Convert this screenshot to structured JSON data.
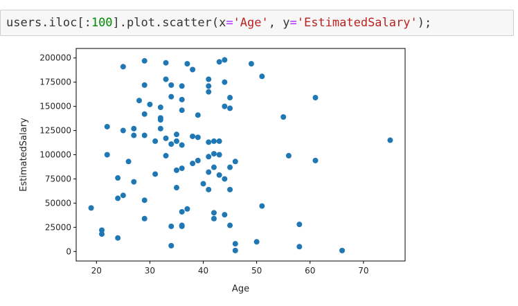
{
  "code": {
    "tokens": [
      {
        "text": "users.iloc[:",
        "cls": ""
      },
      {
        "text": "100",
        "cls": "tok-num"
      },
      {
        "text": "].plot.scatter(x",
        "cls": ""
      },
      {
        "text": "=",
        "cls": "tok-op"
      },
      {
        "text": "'Age'",
        "cls": "tok-str"
      },
      {
        "text": ", y",
        "cls": ""
      },
      {
        "text": "=",
        "cls": "tok-op"
      },
      {
        "text": "'EstimatedSalary'",
        "cls": "tok-str"
      },
      {
        "text": ");",
        "cls": ""
      }
    ]
  },
  "chart_data": {
    "type": "scatter",
    "title": "",
    "xlabel": "Age",
    "ylabel": "EstimatedSalary",
    "xlim": [
      16.2,
      77.8
    ],
    "ylim": [
      -9830,
      209830
    ],
    "x_ticks": [
      20,
      30,
      40,
      50,
      60,
      70
    ],
    "y_ticks": [
      0,
      25000,
      50000,
      75000,
      100000,
      125000,
      150000,
      175000,
      200000
    ],
    "grid": false,
    "marker_color": "#1f77b4",
    "points": [
      {
        "x": 19,
        "y": 45000
      },
      {
        "x": 21,
        "y": 22000
      },
      {
        "x": 21,
        "y": 18000
      },
      {
        "x": 22,
        "y": 129000
      },
      {
        "x": 22,
        "y": 100000
      },
      {
        "x": 24,
        "y": 76000
      },
      {
        "x": 24,
        "y": 55000
      },
      {
        "x": 24,
        "y": 14000
      },
      {
        "x": 25,
        "y": 191000
      },
      {
        "x": 25,
        "y": 125000
      },
      {
        "x": 25,
        "y": 58000
      },
      {
        "x": 26,
        "y": 93000
      },
      {
        "x": 27,
        "y": 127000
      },
      {
        "x": 27,
        "y": 120000
      },
      {
        "x": 27,
        "y": 72000
      },
      {
        "x": 28,
        "y": 156000
      },
      {
        "x": 29,
        "y": 197000
      },
      {
        "x": 29,
        "y": 172000
      },
      {
        "x": 29,
        "y": 142000
      },
      {
        "x": 29,
        "y": 120000
      },
      {
        "x": 29,
        "y": 53000
      },
      {
        "x": 29,
        "y": 34000
      },
      {
        "x": 30,
        "y": 152000
      },
      {
        "x": 31,
        "y": 114000
      },
      {
        "x": 31,
        "y": 80000
      },
      {
        "x": 32,
        "y": 149000
      },
      {
        "x": 32,
        "y": 138000
      },
      {
        "x": 32,
        "y": 136000
      },
      {
        "x": 32,
        "y": 127000
      },
      {
        "x": 33,
        "y": 195000
      },
      {
        "x": 33,
        "y": 178000
      },
      {
        "x": 33,
        "y": 117000
      },
      {
        "x": 33,
        "y": 99000
      },
      {
        "x": 34,
        "y": 172000
      },
      {
        "x": 34,
        "y": 160000
      },
      {
        "x": 34,
        "y": 111000
      },
      {
        "x": 34,
        "y": 26000
      },
      {
        "x": 34,
        "y": 6000
      },
      {
        "x": 35,
        "y": 121000
      },
      {
        "x": 35,
        "y": 114000
      },
      {
        "x": 35,
        "y": 84000
      },
      {
        "x": 35,
        "y": 66000
      },
      {
        "x": 36,
        "y": 171000
      },
      {
        "x": 36,
        "y": 157000
      },
      {
        "x": 36,
        "y": 146000
      },
      {
        "x": 36,
        "y": 110000
      },
      {
        "x": 36,
        "y": 86000
      },
      {
        "x": 36,
        "y": 41000
      },
      {
        "x": 36,
        "y": 27000
      },
      {
        "x": 36,
        "y": 26000
      },
      {
        "x": 37,
        "y": 194000
      },
      {
        "x": 37,
        "y": 44000
      },
      {
        "x": 38,
        "y": 188000
      },
      {
        "x": 38,
        "y": 119000
      },
      {
        "x": 38,
        "y": 91000
      },
      {
        "x": 39,
        "y": 141000
      },
      {
        "x": 39,
        "y": 118000
      },
      {
        "x": 39,
        "y": 94000
      },
      {
        "x": 40,
        "y": 70000
      },
      {
        "x": 41,
        "y": 178000
      },
      {
        "x": 41,
        "y": 171000
      },
      {
        "x": 41,
        "y": 165000
      },
      {
        "x": 41,
        "y": 113000
      },
      {
        "x": 41,
        "y": 98000
      },
      {
        "x": 41,
        "y": 82000
      },
      {
        "x": 41,
        "y": 64000
      },
      {
        "x": 42,
        "y": 114000
      },
      {
        "x": 42,
        "y": 101000
      },
      {
        "x": 42,
        "y": 87000
      },
      {
        "x": 42,
        "y": 40000
      },
      {
        "x": 42,
        "y": 34000
      },
      {
        "x": 43,
        "y": 196000
      },
      {
        "x": 43,
        "y": 114000
      },
      {
        "x": 43,
        "y": 100000
      },
      {
        "x": 43,
        "y": 79000
      },
      {
        "x": 44,
        "y": 198000
      },
      {
        "x": 44,
        "y": 175000
      },
      {
        "x": 44,
        "y": 150000
      },
      {
        "x": 44,
        "y": 75000
      },
      {
        "x": 44,
        "y": 38000
      },
      {
        "x": 45,
        "y": 159000
      },
      {
        "x": 45,
        "y": 148000
      },
      {
        "x": 45,
        "y": 87000
      },
      {
        "x": 45,
        "y": 64000
      },
      {
        "x": 45,
        "y": 27000
      },
      {
        "x": 46,
        "y": 93000
      },
      {
        "x": 46,
        "y": 8000
      },
      {
        "x": 46,
        "y": 1000
      },
      {
        "x": 49,
        "y": 194000
      },
      {
        "x": 50,
        "y": 10000
      },
      {
        "x": 51,
        "y": 181000
      },
      {
        "x": 51,
        "y": 47000
      },
      {
        "x": 55,
        "y": 139000
      },
      {
        "x": 56,
        "y": 99000
      },
      {
        "x": 58,
        "y": 28000
      },
      {
        "x": 58,
        "y": 5000
      },
      {
        "x": 61,
        "y": 159000
      },
      {
        "x": 61,
        "y": 94000
      },
      {
        "x": 66,
        "y": 1000
      },
      {
        "x": 75,
        "y": 115000
      }
    ]
  }
}
